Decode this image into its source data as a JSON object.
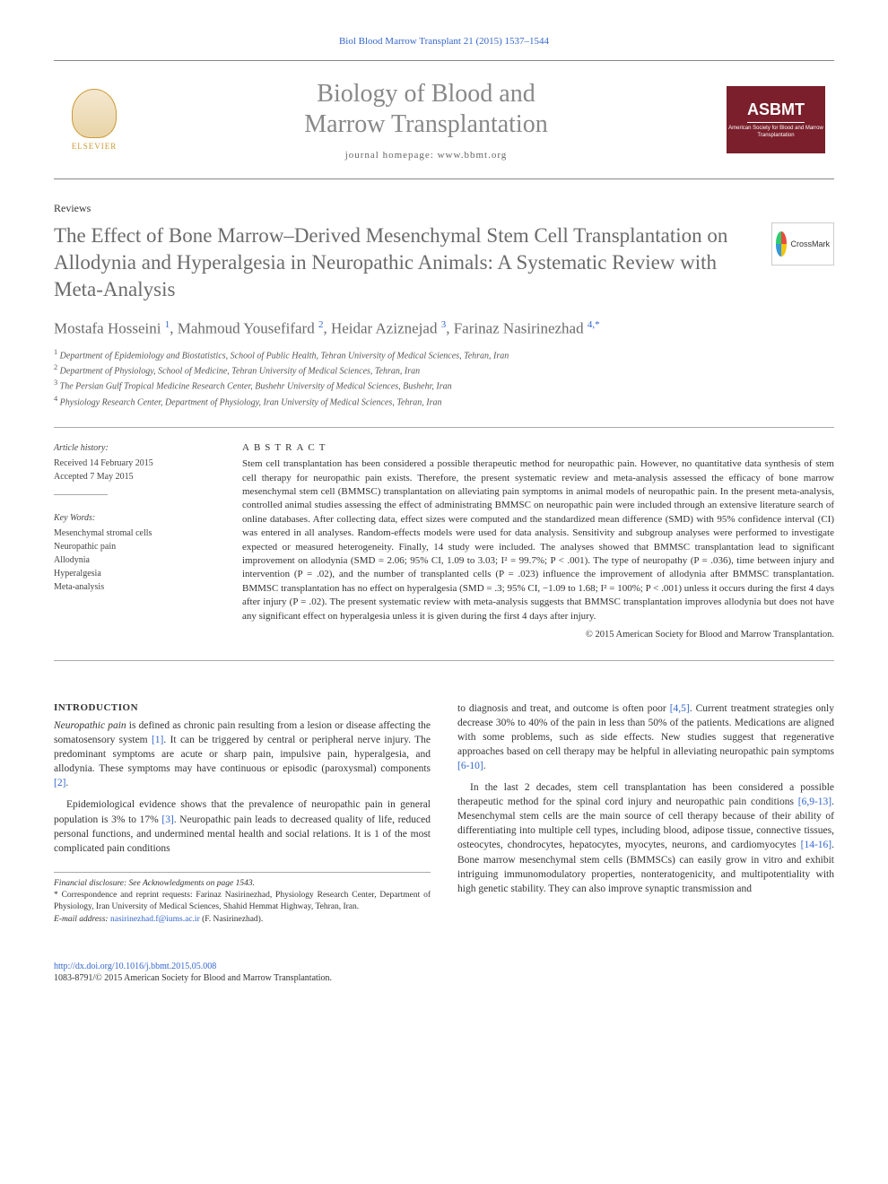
{
  "header": {
    "citation": "Biol Blood Marrow Transplant 21 (2015) 1537–1544",
    "journal_title_line1": "Biology of Blood and",
    "journal_title_line2": "Marrow Transplantation",
    "homepage_label": "journal homepage: ",
    "homepage_url": "www.bbmt.org",
    "elsevier_label": "ELSEVIER",
    "asbmt_name": "ASBMT",
    "asbmt_subtitle": "American Society for Blood and Marrow Transplantation"
  },
  "article": {
    "section_label": "Reviews",
    "title": "The Effect of Bone Marrow–Derived Mesenchymal Stem Cell Transplantation on Allodynia and Hyperalgesia in Neuropathic Animals: A Systematic Review with Meta-Analysis",
    "crossmark_label": "CrossMark",
    "authors_html": "Mostafa Hosseini <sup>1</sup>, Mahmoud Yousefifard <sup>2</sup>, Heidar Aziznejad <sup>3</sup>, Farinaz Nasirinezhad <sup>4,*</sup>",
    "affiliations": [
      "1 Department of Epidemiology and Biostatistics, School of Public Health, Tehran University of Medical Sciences, Tehran, Iran",
      "2 Department of Physiology, School of Medicine, Tehran University of Medical Sciences, Tehran, Iran",
      "3 The Persian Gulf Tropical Medicine Research Center, Bushehr University of Medical Sciences, Bushehr, Iran",
      "4 Physiology Research Center, Department of Physiology, Iran University of Medical Sciences, Tehran, Iran"
    ]
  },
  "meta": {
    "history_h": "Article history:",
    "received": "Received 14 February 2015",
    "accepted": "Accepted 7 May 2015",
    "keywords_h": "Key Words:",
    "keywords": [
      "Mesenchymal stromal cells",
      "Neuropathic pain",
      "Allodynia",
      "Hyperalgesia",
      "Meta-analysis"
    ]
  },
  "abstract": {
    "heading": "ABSTRACT",
    "text": "Stem cell transplantation has been considered a possible therapeutic method for neuropathic pain. However, no quantitative data synthesis of stem cell therapy for neuropathic pain exists. Therefore, the present systematic review and meta-analysis assessed the efficacy of bone marrow mesenchymal stem cell (BMMSC) transplantation on alleviating pain symptoms in animal models of neuropathic pain. In the present meta-analysis, controlled animal studies assessing the effect of administrating BMMSC on neuropathic pain were included through an extensive literature search of online databases. After collecting data, effect sizes were computed and the standardized mean difference (SMD) with 95% confidence interval (CI) was entered in all analyses. Random-effects models were used for data analysis. Sensitivity and subgroup analyses were performed to investigate expected or measured heterogeneity. Finally, 14 study were included. The analyses showed that BMMSC transplantation lead to significant improvement on allodynia (SMD = 2.06; 95% CI, 1.09 to 3.03; I² = 99.7%; P < .001). The type of neuropathy (P = .036), time between injury and intervention (P = .02), and the number of transplanted cells (P = .023) influence the improvement of allodynia after BMMSC transplantation. BMMSC transplantation has no effect on hyperalgesia (SMD = .3; 95% CI, −1.09 to 1.68; I² = 100%; P < .001) unless it occurs during the first 4 days after injury (P = .02). The present systematic review with meta-analysis suggests that BMMSC transplantation improves allodynia but does not have any significant effect on hyperalgesia unless it is given during the first 4 days after injury.",
    "copyright": "© 2015 American Society for Blood and Marrow Transplantation."
  },
  "body": {
    "intro_h": "INTRODUCTION",
    "left_paragraphs": [
      "Neuropathic pain is defined as chronic pain resulting from a lesion or disease affecting the somatosensory system [1]. It can be triggered by central or peripheral nerve injury. The predominant symptoms are acute or sharp pain, impulsive pain, hyperalgesia, and allodynia. These symptoms may have continuous or episodic (paroxysmal) components [2].",
      "Epidemiological evidence shows that the prevalence of neuropathic pain in general population is 3% to 17% [3]. Neuropathic pain leads to decreased quality of life, reduced personal functions, and undermined mental health and social relations. It is 1 of the most complicated pain conditions"
    ],
    "right_paragraphs": [
      "to diagnosis and treat, and outcome is often poor [4,5]. Current treatment strategies only decrease 30% to 40% of the pain in less than 50% of the patients. Medications are aligned with some problems, such as side effects. New studies suggest that regenerative approaches based on cell therapy may be helpful in alleviating neuropathic pain symptoms [6-10].",
      "In the last 2 decades, stem cell transplantation has been considered a possible therapeutic method for the spinal cord injury and neuropathic pain conditions [6,9-13]. Mesenchymal stem cells are the main source of cell therapy because of their ability of differentiating into multiple cell types, including blood, adipose tissue, connective tissues, osteocytes, chondrocytes, hepatocytes, myocytes, neurons, and cardiomyocytes [14-16]. Bone marrow mesenchymal stem cells (BMMSCs) can easily grow in vitro and exhibit intriguing immunomodulatory properties, nonteratogenicity, and multipotentiality with high genetic stability. They can also improve synaptic transmission and"
    ]
  },
  "footnotes": {
    "financial": "Financial disclosure: See Acknowledgments on page 1543.",
    "correspondence": "* Correspondence and reprint requests: Farinaz Nasirinezhad, Physiology Research Center, Department of Physiology, Iran University of Medical Sciences, Shahid Hemmat Highway, Tehran, Iran.",
    "email_label": "E-mail address: ",
    "email": "nasirinezhad.f@iums.ac.ir",
    "email_suffix": " (F. Nasirinezhad)."
  },
  "footer": {
    "doi": "http://dx.doi.org/10.1016/j.bbmt.2015.05.008",
    "issn_copyright": "1083-8791/© 2015 American Society for Blood and Marrow Transplantation."
  },
  "colors": {
    "link": "#3366cc",
    "title_gray": "#6b6b6b",
    "asbmt_bg": "#7a1f2b",
    "elsevier_orange": "#cc9933"
  }
}
